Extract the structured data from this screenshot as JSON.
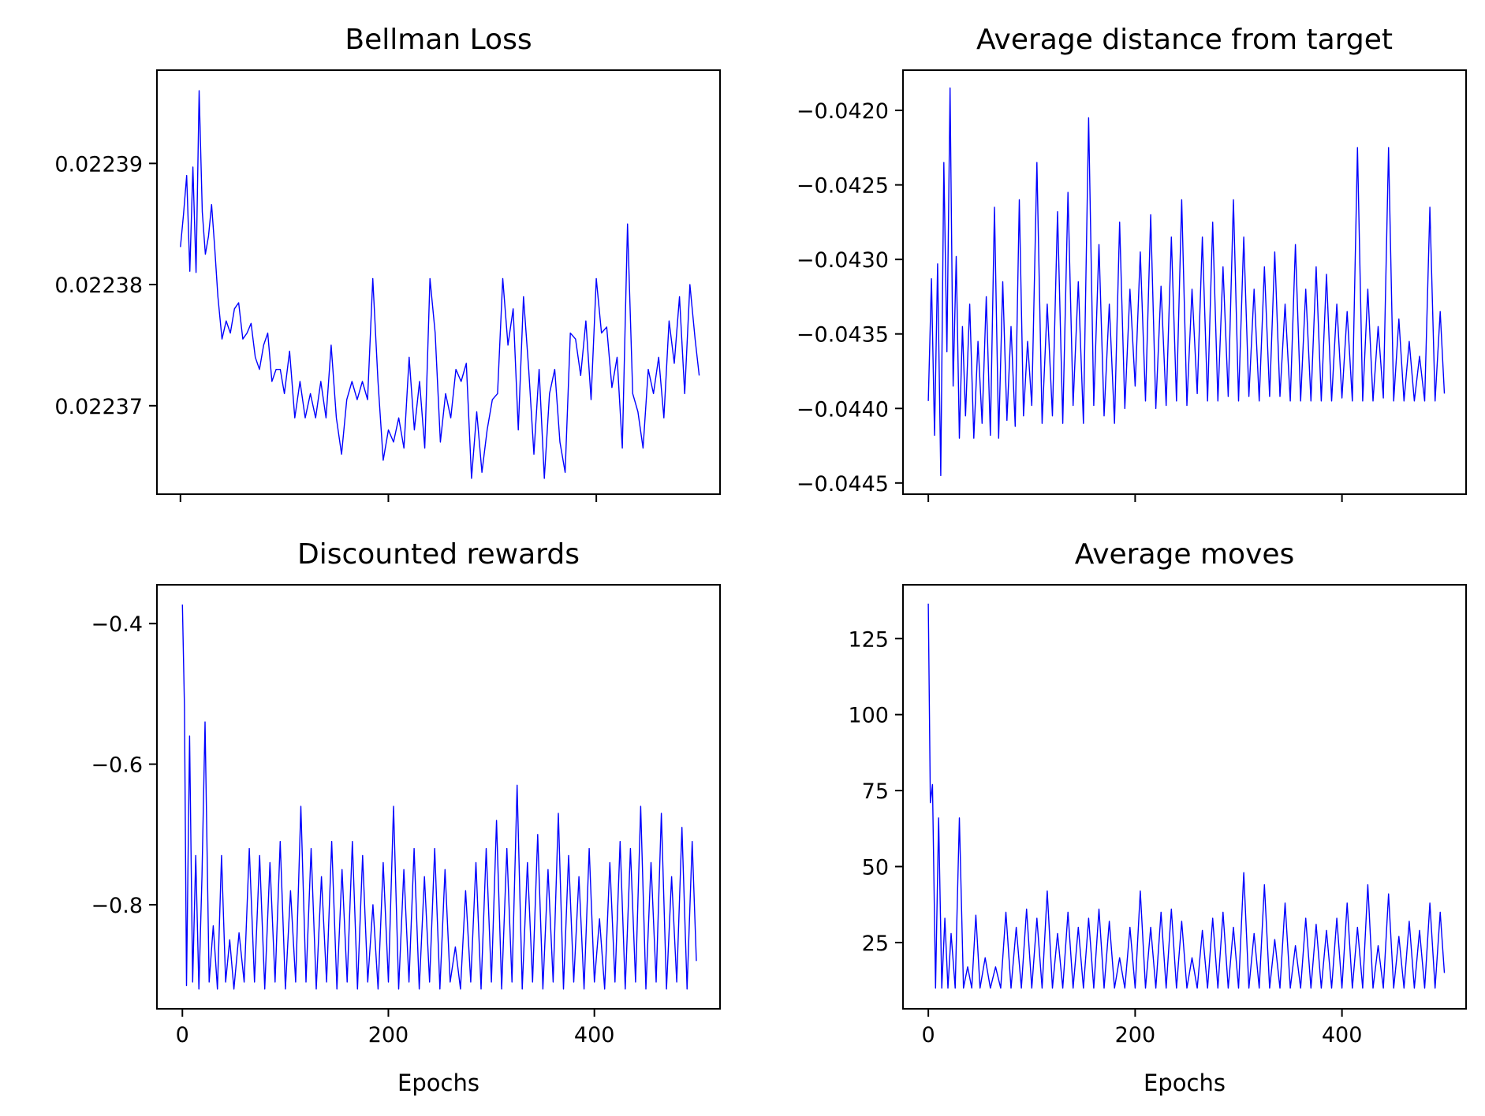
{
  "colors": {
    "line": "#0000ff",
    "axes": "#000000",
    "background": "#ffffff"
  },
  "chart_data": [
    {
      "type": "line",
      "title": "Bellman Loss",
      "xlabel": "",
      "ylabel": "",
      "xlim": [
        -22.6,
        519
      ],
      "ylim": [
        0.0223627,
        0.0223977
      ],
      "xticks": [
        0,
        200,
        400
      ],
      "yticks": [
        0.02237,
        0.02238,
        0.02239
      ],
      "ytick_labels": [
        "0.02237",
        "0.02238",
        "0.02239"
      ],
      "show_xtick_labels": false,
      "grid": false,
      "series": [
        {
          "color": "#0000ff",
          "x": [
            0,
            3,
            6,
            9,
            12,
            15,
            18,
            21,
            24,
            27,
            30,
            33,
            36,
            40,
            44,
            48,
            52,
            56,
            60,
            64,
            68,
            72,
            76,
            80,
            84,
            88,
            92,
            96,
            100,
            105,
            110,
            115,
            120,
            125,
            130,
            135,
            140,
            145,
            150,
            155,
            160,
            165,
            170,
            175,
            180,
            185,
            190,
            195,
            200,
            205,
            210,
            215,
            220,
            225,
            230,
            235,
            240,
            245,
            250,
            255,
            260,
            265,
            270,
            275,
            280,
            285,
            290,
            295,
            300,
            305,
            310,
            315,
            320,
            325,
            330,
            335,
            340,
            345,
            350,
            355,
            360,
            365,
            370,
            375,
            380,
            385,
            390,
            395,
            400,
            405,
            410,
            415,
            420,
            425,
            430,
            435,
            440,
            445,
            450,
            455,
            460,
            465,
            470,
            475,
            480,
            485,
            490,
            495,
            499
          ],
          "y": [
            0.0223831,
            0.0223858,
            0.022389,
            0.0223811,
            0.0223897,
            0.022381,
            0.022396,
            0.022386,
            0.0223825,
            0.022384,
            0.0223866,
            0.022383,
            0.022379,
            0.0223755,
            0.022377,
            0.022376,
            0.022378,
            0.0223785,
            0.0223755,
            0.022376,
            0.0223768,
            0.022374,
            0.022373,
            0.022375,
            0.022376,
            0.022372,
            0.022373,
            0.022373,
            0.022371,
            0.0223745,
            0.022369,
            0.022372,
            0.022369,
            0.022371,
            0.022369,
            0.022372,
            0.022369,
            0.022375,
            0.022369,
            0.022366,
            0.0223705,
            0.022372,
            0.0223705,
            0.022372,
            0.0223705,
            0.0223805,
            0.022372,
            0.0223655,
            0.022368,
            0.022367,
            0.022369,
            0.0223665,
            0.022374,
            0.022368,
            0.022372,
            0.0223665,
            0.0223805,
            0.022376,
            0.022367,
            0.022371,
            0.022369,
            0.022373,
            0.022372,
            0.0223735,
            0.022364,
            0.0223695,
            0.0223645,
            0.022368,
            0.0223705,
            0.022371,
            0.0223805,
            0.022375,
            0.022378,
            0.022368,
            0.022379,
            0.022373,
            0.022366,
            0.022373,
            0.022364,
            0.022371,
            0.022373,
            0.022367,
            0.0223645,
            0.022376,
            0.0223755,
            0.0223725,
            0.022377,
            0.0223705,
            0.0223805,
            0.022376,
            0.0223765,
            0.0223715,
            0.022374,
            0.0223665,
            0.022385,
            0.022371,
            0.0223695,
            0.0223665,
            0.022373,
            0.022371,
            0.022374,
            0.022369,
            0.022377,
            0.0223735,
            0.022379,
            0.022371,
            0.02238,
            0.0223755,
            0.0223725
          ]
        }
      ]
    },
    {
      "type": "line",
      "title": "Average distance from target",
      "xlabel": "",
      "ylabel": "",
      "xlim": [
        -24.5,
        520
      ],
      "ylim": [
        -0.044575,
        -0.04173
      ],
      "xticks": [
        0,
        200,
        400
      ],
      "yticks": [
        -0.0445,
        -0.044,
        -0.0435,
        -0.043,
        -0.0425,
        -0.042
      ],
      "ytick_labels": [
        "−0.0445",
        "−0.0440",
        "−0.0435",
        "−0.0430",
        "−0.0425",
        "−0.0420"
      ],
      "show_xtick_labels": false,
      "grid": false,
      "series": [
        {
          "color": "#0000ff",
          "x": [
            0,
            3,
            6,
            9,
            12,
            15,
            18,
            21,
            24,
            27,
            30,
            33,
            36,
            40,
            44,
            48,
            52,
            56,
            60,
            64,
            68,
            72,
            76,
            80,
            84,
            88,
            92,
            96,
            100,
            105,
            110,
            115,
            120,
            125,
            130,
            135,
            140,
            145,
            150,
            155,
            160,
            165,
            170,
            175,
            180,
            185,
            190,
            195,
            200,
            205,
            210,
            215,
            220,
            225,
            230,
            235,
            240,
            245,
            250,
            255,
            260,
            265,
            270,
            275,
            280,
            285,
            290,
            295,
            300,
            305,
            310,
            315,
            320,
            325,
            330,
            335,
            340,
            345,
            350,
            355,
            360,
            365,
            370,
            375,
            380,
            385,
            390,
            395,
            400,
            405,
            410,
            415,
            420,
            425,
            430,
            435,
            440,
            445,
            450,
            455,
            460,
            465,
            470,
            475,
            480,
            485,
            490,
            495,
            499
          ],
          "y": [
            -0.04395,
            -0.04313,
            -0.04418,
            -0.04303,
            -0.04445,
            -0.04235,
            -0.04362,
            -0.04185,
            -0.04385,
            -0.04298,
            -0.0442,
            -0.04345,
            -0.04405,
            -0.0433,
            -0.0442,
            -0.04355,
            -0.0441,
            -0.04325,
            -0.04418,
            -0.04265,
            -0.0442,
            -0.04315,
            -0.04408,
            -0.04345,
            -0.04412,
            -0.0426,
            -0.04405,
            -0.04355,
            -0.04398,
            -0.04235,
            -0.0441,
            -0.0433,
            -0.04405,
            -0.04268,
            -0.0441,
            -0.04255,
            -0.04398,
            -0.04315,
            -0.0441,
            -0.04205,
            -0.04398,
            -0.0429,
            -0.04405,
            -0.0433,
            -0.0441,
            -0.04275,
            -0.044,
            -0.0432,
            -0.04385,
            -0.04295,
            -0.04395,
            -0.0427,
            -0.044,
            -0.04318,
            -0.04398,
            -0.04285,
            -0.04395,
            -0.0426,
            -0.04398,
            -0.0432,
            -0.0439,
            -0.04285,
            -0.04395,
            -0.04275,
            -0.04395,
            -0.04305,
            -0.04392,
            -0.0426,
            -0.04395,
            -0.04285,
            -0.04392,
            -0.0432,
            -0.04395,
            -0.04305,
            -0.04392,
            -0.04295,
            -0.04392,
            -0.0433,
            -0.04395,
            -0.0429,
            -0.04395,
            -0.0432,
            -0.04395,
            -0.04305,
            -0.04395,
            -0.0431,
            -0.04395,
            -0.0433,
            -0.04393,
            -0.04335,
            -0.04395,
            -0.04225,
            -0.04395,
            -0.0432,
            -0.04395,
            -0.04345,
            -0.04393,
            -0.04225,
            -0.04395,
            -0.0434,
            -0.04395,
            -0.04355,
            -0.04395,
            -0.04365,
            -0.04395,
            -0.04265,
            -0.04395,
            -0.04335,
            -0.0439
          ]
        }
      ]
    },
    {
      "type": "line",
      "title": "Discounted rewards",
      "xlabel": "Epochs",
      "ylabel": "",
      "xlim": [
        -24.7,
        522
      ],
      "ylim": [
        -0.9481,
        -0.3448
      ],
      "xticks": [
        0,
        200,
        400
      ],
      "xtick_labels": [
        "0",
        "200",
        "400"
      ],
      "yticks": [
        -0.8,
        -0.6,
        -0.4
      ],
      "ytick_labels": [
        "−0.8",
        "−0.6",
        "−0.4"
      ],
      "show_xtick_labels": true,
      "grid": false,
      "series": [
        {
          "color": "#0000ff",
          "x": [
            0,
            2,
            4,
            7,
            10,
            13,
            16,
            19,
            22,
            26,
            30,
            34,
            38,
            42,
            46,
            50,
            55,
            60,
            65,
            70,
            75,
            80,
            85,
            90,
            95,
            100,
            105,
            110,
            115,
            120,
            125,
            130,
            135,
            140,
            145,
            150,
            155,
            160,
            165,
            170,
            175,
            180,
            185,
            190,
            195,
            200,
            205,
            210,
            215,
            220,
            225,
            230,
            235,
            240,
            245,
            250,
            255,
            260,
            265,
            270,
            275,
            280,
            285,
            290,
            295,
            300,
            305,
            310,
            315,
            320,
            325,
            330,
            335,
            340,
            345,
            350,
            355,
            360,
            365,
            370,
            375,
            380,
            385,
            390,
            395,
            400,
            405,
            410,
            415,
            420,
            425,
            430,
            435,
            440,
            445,
            450,
            455,
            460,
            465,
            470,
            475,
            480,
            485,
            490,
            495,
            499
          ],
          "y": [
            -0.373,
            -0.519,
            -0.915,
            -0.56,
            -0.91,
            -0.73,
            -0.92,
            -0.76,
            -0.54,
            -0.91,
            -0.83,
            -0.92,
            -0.73,
            -0.91,
            -0.85,
            -0.92,
            -0.84,
            -0.91,
            -0.72,
            -0.91,
            -0.73,
            -0.92,
            -0.74,
            -0.91,
            -0.71,
            -0.92,
            -0.78,
            -0.91,
            -0.66,
            -0.91,
            -0.72,
            -0.92,
            -0.76,
            -0.91,
            -0.71,
            -0.92,
            -0.75,
            -0.91,
            -0.71,
            -0.92,
            -0.73,
            -0.91,
            -0.8,
            -0.92,
            -0.74,
            -0.91,
            -0.66,
            -0.92,
            -0.75,
            -0.91,
            -0.72,
            -0.92,
            -0.76,
            -0.91,
            -0.72,
            -0.92,
            -0.75,
            -0.91,
            -0.86,
            -0.92,
            -0.78,
            -0.91,
            -0.74,
            -0.92,
            -0.72,
            -0.91,
            -0.68,
            -0.92,
            -0.72,
            -0.91,
            -0.63,
            -0.92,
            -0.74,
            -0.91,
            -0.7,
            -0.92,
            -0.75,
            -0.91,
            -0.67,
            -0.92,
            -0.73,
            -0.91,
            -0.76,
            -0.92,
            -0.72,
            -0.91,
            -0.82,
            -0.92,
            -0.74,
            -0.91,
            -0.71,
            -0.92,
            -0.72,
            -0.91,
            -0.66,
            -0.92,
            -0.74,
            -0.91,
            -0.67,
            -0.92,
            -0.76,
            -0.91,
            -0.69,
            -0.92,
            -0.71,
            -0.88
          ]
        }
      ]
    },
    {
      "type": "line",
      "title": "Average moves",
      "xlabel": "Epochs",
      "ylabel": "",
      "xlim": [
        -24.5,
        520
      ],
      "ylim": [
        3.2,
        142.7
      ],
      "xticks": [
        0,
        200,
        400
      ],
      "xtick_labels": [
        "0",
        "200",
        "400"
      ],
      "yticks": [
        25,
        50,
        75,
        100,
        125
      ],
      "ytick_labels": [
        "25",
        "50",
        "75",
        "100",
        "125"
      ],
      "show_xtick_labels": true,
      "grid": false,
      "series": [
        {
          "color": "#0000ff",
          "x": [
            0,
            2,
            4,
            7,
            10,
            13,
            16,
            19,
            22,
            26,
            30,
            34,
            38,
            42,
            46,
            50,
            55,
            60,
            65,
            70,
            75,
            80,
            85,
            90,
            95,
            100,
            105,
            110,
            115,
            120,
            125,
            130,
            135,
            140,
            145,
            150,
            155,
            160,
            165,
            170,
            175,
            180,
            185,
            190,
            195,
            200,
            205,
            210,
            215,
            220,
            225,
            230,
            235,
            240,
            245,
            250,
            255,
            260,
            265,
            270,
            275,
            280,
            285,
            290,
            295,
            300,
            305,
            310,
            315,
            320,
            325,
            330,
            335,
            340,
            345,
            350,
            355,
            360,
            365,
            370,
            375,
            380,
            385,
            390,
            395,
            400,
            405,
            410,
            415,
            420,
            425,
            430,
            435,
            440,
            445,
            450,
            455,
            460,
            465,
            470,
            475,
            480,
            485,
            490,
            495,
            499
          ],
          "y": [
            136.5,
            71,
            77,
            10,
            66,
            10,
            33,
            10,
            28,
            10,
            66,
            10,
            17,
            10,
            34,
            10,
            20,
            10,
            17,
            10,
            35,
            10,
            30,
            10,
            36,
            10,
            33,
            10,
            42,
            10,
            28,
            10,
            35,
            10,
            30,
            10,
            33,
            10,
            36,
            10,
            32,
            10,
            20,
            10,
            30,
            10,
            42,
            10,
            30,
            10,
            35,
            10,
            36,
            10,
            32,
            10,
            20,
            10,
            29,
            10,
            33,
            10,
            35,
            10,
            30,
            10,
            48,
            10,
            28,
            10,
            44,
            10,
            26,
            10,
            38,
            10,
            24,
            10,
            33,
            10,
            31,
            10,
            29,
            10,
            33,
            10,
            38,
            10,
            30,
            10,
            44,
            10,
            24,
            10,
            41,
            10,
            27,
            10,
            32,
            10,
            29,
            10,
            38,
            10,
            35,
            15
          ]
        }
      ]
    }
  ]
}
